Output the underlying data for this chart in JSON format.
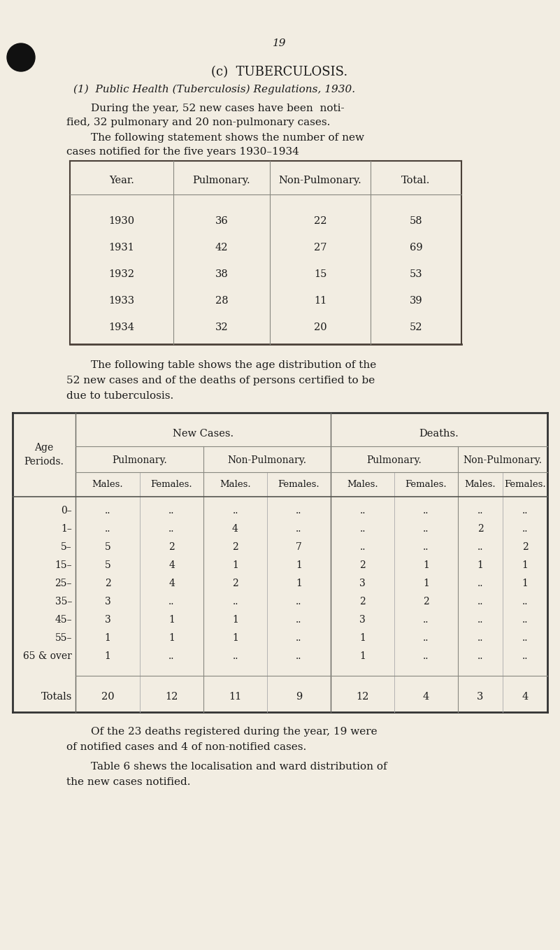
{
  "bg_color": "#f2ede2",
  "text_color": "#1a1a1a",
  "page_number": "19",
  "title": "(c)  TUBERCULOSIS.",
  "subtitle": "(1)  Public Health (Tuberculosis) Regulations, 1930.",
  "para1a": "During the year, 52 new cases have been  noti-",
  "para1b": "fied, 32 pulmonary and 20 non-pulmonary cases.",
  "para2a": "The following statement shows the number of new",
  "para2b": "cases notified for the five years 1930–1934",
  "table1_headers": [
    "Year.",
    "Pulmonary.",
    "Non-Pulmonary.",
    "Total."
  ],
  "table1_rows": [
    [
      "1930",
      "36",
      "22",
      "58"
    ],
    [
      "1931",
      "42",
      "27",
      "69"
    ],
    [
      "1932",
      "38",
      "15",
      "53"
    ],
    [
      "1933",
      "28",
      "11",
      "39"
    ],
    [
      "1934",
      "32",
      "20",
      "52"
    ]
  ],
  "para3a": "The following table shows the age distribution of the",
  "para3b": "52 new cases and of the deaths of persons certified to be",
  "para3c": "due to tuberculosis.",
  "table2_rows": [
    [
      "0–",
      "..",
      "..",
      "..",
      "..",
      "..",
      "..",
      "..",
      ".."
    ],
    [
      "1–",
      "..",
      "..",
      "4",
      "..",
      "..",
      "..",
      "2",
      ".."
    ],
    [
      "5–",
      "5",
      "2",
      "2",
      "7",
      "..",
      "..",
      "..",
      "2"
    ],
    [
      "15–",
      "5",
      "4",
      "1",
      "1",
      "2",
      "1",
      "1",
      "1"
    ],
    [
      "25–",
      "2",
      "4",
      "2",
      "1",
      "3",
      "1",
      "..",
      "1"
    ],
    [
      "35–",
      "3",
      "..",
      "..",
      "..",
      "2",
      "2",
      "..",
      ".."
    ],
    [
      "45–",
      "3",
      "1",
      "1",
      "..",
      "3",
      "..",
      "..",
      ".."
    ],
    [
      "55–",
      "1",
      "1",
      "1",
      "..",
      "1",
      "..",
      "..",
      ".."
    ],
    [
      "65 & over",
      "1",
      "..",
      "..",
      "..",
      "1",
      "..",
      "..",
      ".."
    ]
  ],
  "table2_totals": [
    "Totals",
    "20",
    "12",
    "11",
    "9",
    "12",
    "4",
    "3",
    "4"
  ],
  "para4a": "Of the 23 deaths registered during the year, 19 were",
  "para4b": "of notified cases and 4 of non-notified cases.",
  "para5a": "Table 6 shews the localisation and ward distribution of",
  "para5b": "the new cases notified."
}
